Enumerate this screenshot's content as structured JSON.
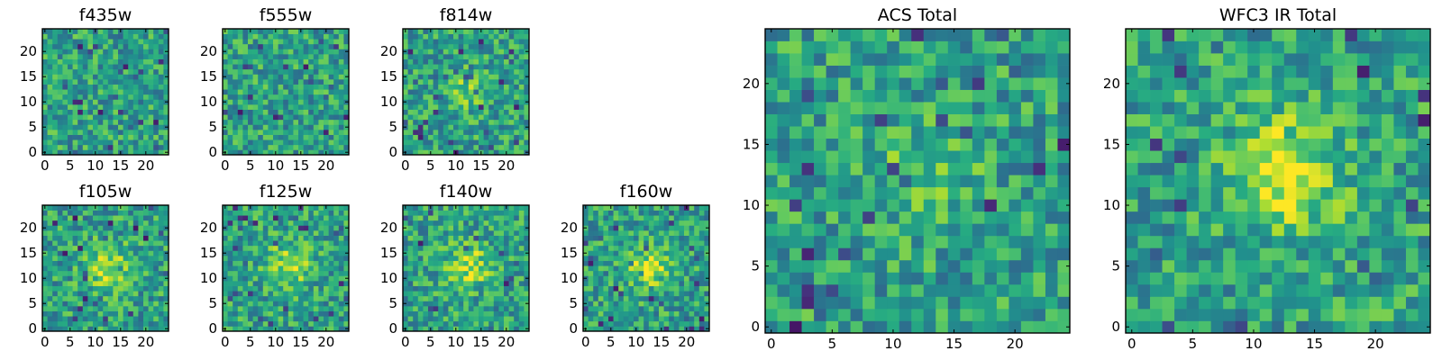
{
  "chart_data": {
    "type": "heatmap",
    "colormap": "viridis",
    "colors": {
      "low": "#440154",
      "mid_low": "#31688e",
      "mid": "#35b779",
      "high": "#fde725"
    },
    "panels": [
      {
        "title": "f435w",
        "xticks": [
          "0",
          "5",
          "10",
          "15",
          "20"
        ],
        "yticks": [
          "0",
          "5",
          "10",
          "15",
          "20"
        ],
        "xlim": [
          0,
          24
        ],
        "ylim": [
          0,
          24
        ],
        "grid_size": 25,
        "feature": "noise"
      },
      {
        "title": "f555w",
        "xticks": [
          "0",
          "5",
          "10",
          "15",
          "20"
        ],
        "yticks": [
          "0",
          "5",
          "10",
          "15",
          "20"
        ],
        "xlim": [
          0,
          24
        ],
        "ylim": [
          0,
          24
        ],
        "grid_size": 25,
        "feature": "noise"
      },
      {
        "title": "f814w",
        "xticks": [
          "0",
          "5",
          "10",
          "15",
          "20"
        ],
        "yticks": [
          "0",
          "5",
          "10",
          "15",
          "20"
        ],
        "xlim": [
          0,
          24
        ],
        "ylim": [
          0,
          24
        ],
        "grid_size": 25,
        "feature": "faint central source"
      },
      {
        "title": "f105w",
        "xticks": [
          "0",
          "5",
          "10",
          "15",
          "20"
        ],
        "yticks": [
          "0",
          "5",
          "10",
          "15",
          "20"
        ],
        "xlim": [
          0,
          24
        ],
        "ylim": [
          0,
          24
        ],
        "grid_size": 25,
        "feature": "central source"
      },
      {
        "title": "f125w",
        "xticks": [
          "0",
          "5",
          "10",
          "15",
          "20"
        ],
        "yticks": [
          "0",
          "5",
          "10",
          "15",
          "20"
        ],
        "xlim": [
          0,
          24
        ],
        "ylim": [
          0,
          24
        ],
        "grid_size": 25,
        "feature": "central source"
      },
      {
        "title": "f140w",
        "xticks": [
          "0",
          "5",
          "10",
          "15",
          "20"
        ],
        "yticks": [
          "0",
          "5",
          "10",
          "15",
          "20"
        ],
        "xlim": [
          0,
          24
        ],
        "ylim": [
          0,
          24
        ],
        "grid_size": 25,
        "feature": "central source"
      },
      {
        "title": "f160w",
        "xticks": [
          "0",
          "5",
          "10",
          "15",
          "20"
        ],
        "yticks": [
          "0",
          "5",
          "10",
          "15",
          "20"
        ],
        "xlim": [
          0,
          24
        ],
        "ylim": [
          0,
          24
        ],
        "grid_size": 25,
        "feature": "central source"
      },
      {
        "title": "ACS Total",
        "xticks": [
          "0",
          "5",
          "10",
          "15",
          "20"
        ],
        "yticks": [
          "0",
          "5",
          "10",
          "15",
          "20"
        ],
        "xlim": [
          0,
          24
        ],
        "ylim": [
          0,
          24
        ],
        "grid_size": 25,
        "feature": "faint central source"
      },
      {
        "title": "WFC3 IR Total",
        "xticks": [
          "0",
          "5",
          "10",
          "15",
          "20"
        ],
        "yticks": [
          "0",
          "5",
          "10",
          "15",
          "20"
        ],
        "xlim": [
          0,
          24
        ],
        "ylim": [
          0,
          24
        ],
        "grid_size": 25,
        "feature": "bright central source"
      }
    ]
  }
}
